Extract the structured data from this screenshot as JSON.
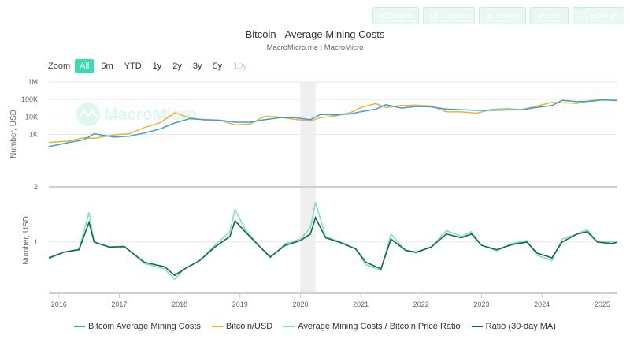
{
  "toolbar": {
    "share_label": "Share",
    "custom_label": "Custom",
    "image_label": "Image",
    "diy_label": "DIY",
    "enlarge_label": "Enlarge"
  },
  "zoom": {
    "label": "Zoom",
    "options": [
      "All",
      "6m",
      "YTD",
      "1y",
      "2y",
      "3y",
      "5y",
      "10y"
    ],
    "selected": "All"
  },
  "watermark": "MacroMicro",
  "colors": {
    "cost": "#3aa0d8",
    "price": "#f0b030",
    "ratio": "#7fdcc0",
    "ratio_ma": "#0f6b4f",
    "zoom_active": "#3ed9b0"
  },
  "chart_data": {
    "type": "line",
    "title": "Bitcoin - Average Mining Costs",
    "subtitle": "MacroMicro.me | MacroMicro",
    "x_ticks": [
      "2016",
      "2017",
      "2018",
      "2019",
      "2020",
      "2021",
      "2022",
      "2023",
      "2024",
      "2025"
    ],
    "x_range": [
      "2015-11",
      "2025-04"
    ],
    "highlight_band": [
      "2020-01",
      "2020-04"
    ],
    "legend_position": "bottom",
    "upper_panel": {
      "ylabel": "Number, USD",
      "scale": "log",
      "y_ticks": [
        "1M",
        "100K",
        "10K",
        "1K",
        "2"
      ],
      "series": [
        {
          "name": "Bitcoin Average Mining Costs",
          "x": [
            "2015-11",
            "2016-03",
            "2016-06",
            "2016-08",
            "2016-12",
            "2017-03",
            "2017-06",
            "2017-09",
            "2017-12",
            "2018-03",
            "2018-06",
            "2018-09",
            "2018-12",
            "2019-03",
            "2019-06",
            "2019-09",
            "2019-12",
            "2020-03",
            "2020-05",
            "2020-08",
            "2020-11",
            "2021-01",
            "2021-04",
            "2021-06",
            "2021-09",
            "2021-12",
            "2022-03",
            "2022-06",
            "2022-09",
            "2022-12",
            "2023-03",
            "2023-06",
            "2023-09",
            "2023-12",
            "2024-03",
            "2024-05",
            "2024-08",
            "2024-11",
            "2025-01",
            "2025-04"
          ],
          "values": [
            200,
            350,
            500,
            1100,
            700,
            800,
            1200,
            2000,
            4500,
            8000,
            7000,
            6500,
            5000,
            5000,
            7000,
            9000,
            9000,
            7000,
            14000,
            13000,
            15000,
            20000,
            28000,
            50000,
            32000,
            40000,
            38000,
            28000,
            26000,
            24000,
            24000,
            25000,
            26000,
            35000,
            45000,
            90000,
            75000,
            80000,
            95000,
            90000
          ]
        },
        {
          "name": "Bitcoin/USD",
          "x": [
            "2015-11",
            "2016-03",
            "2016-06",
            "2016-08",
            "2016-12",
            "2017-03",
            "2017-06",
            "2017-09",
            "2017-12",
            "2018-03",
            "2018-06",
            "2018-09",
            "2018-12",
            "2019-03",
            "2019-06",
            "2019-09",
            "2019-12",
            "2020-03",
            "2020-05",
            "2020-08",
            "2020-11",
            "2021-01",
            "2021-04",
            "2021-06",
            "2021-09",
            "2021-12",
            "2022-03",
            "2022-06",
            "2022-09",
            "2022-12",
            "2023-03",
            "2023-06",
            "2023-09",
            "2023-12",
            "2024-03",
            "2024-05",
            "2024-08",
            "2024-11",
            "2025-01",
            "2025-04"
          ],
          "values": [
            350,
            420,
            650,
            600,
            950,
            1100,
            2500,
            4500,
            17000,
            9000,
            6500,
            6500,
            3500,
            4000,
            11000,
            9500,
            7200,
            6000,
            9000,
            11500,
            18000,
            35000,
            58000,
            35000,
            45000,
            47000,
            42000,
            20000,
            19500,
            16500,
            27000,
            30000,
            26000,
            42000,
            68000,
            65000,
            60000,
            90000,
            100000,
            85000
          ]
        }
      ]
    },
    "lower_panel": {
      "ylabel": "Number, USD",
      "scale": "log",
      "y_ticks": [
        "1"
      ],
      "series": [
        {
          "name": "Average Mining Costs / Bitcoin Price Ratio",
          "x": [
            "2015-11",
            "2016-02",
            "2016-05",
            "2016-07",
            "2016-08",
            "2016-11",
            "2017-02",
            "2017-06",
            "2017-10",
            "2017-12",
            "2018-02",
            "2018-05",
            "2018-08",
            "2018-11",
            "2018-12",
            "2019-02",
            "2019-05",
            "2019-07",
            "2019-10",
            "2020-01",
            "2020-03",
            "2020-04",
            "2020-06",
            "2020-09",
            "2020-12",
            "2021-02",
            "2021-05",
            "2021-07",
            "2021-10",
            "2021-12",
            "2022-03",
            "2022-06",
            "2022-09",
            "2022-11",
            "2023-01",
            "2023-04",
            "2023-07",
            "2023-10",
            "2023-12",
            "2024-03",
            "2024-05",
            "2024-08",
            "2024-10",
            "2024-12",
            "2025-03",
            "2025-04"
          ],
          "values": [
            0.58,
            0.72,
            0.8,
            2.6,
            1.0,
            0.85,
            0.88,
            0.5,
            0.42,
            0.3,
            0.42,
            0.55,
            0.9,
            1.4,
            2.9,
            1.5,
            0.85,
            0.6,
            0.95,
            1.1,
            1.6,
            3.6,
            1.2,
            1.0,
            0.8,
            0.48,
            0.4,
            1.3,
            0.75,
            0.7,
            0.85,
            1.45,
            1.2,
            1.4,
            0.9,
            0.75,
            0.95,
            1.05,
            0.65,
            0.55,
            1.1,
            1.3,
            1.5,
            1.0,
            1.0,
            1.0
          ]
        },
        {
          "name": "Ratio (30-day MA)",
          "x": [
            "2015-11",
            "2016-02",
            "2016-05",
            "2016-07",
            "2016-08",
            "2016-11",
            "2017-02",
            "2017-06",
            "2017-10",
            "2017-12",
            "2018-02",
            "2018-05",
            "2018-08",
            "2018-11",
            "2018-12",
            "2019-02",
            "2019-05",
            "2019-07",
            "2019-10",
            "2020-01",
            "2020-03",
            "2020-04",
            "2020-06",
            "2020-09",
            "2020-12",
            "2021-02",
            "2021-05",
            "2021-07",
            "2021-10",
            "2021-12",
            "2022-03",
            "2022-06",
            "2022-09",
            "2022-11",
            "2023-01",
            "2023-04",
            "2023-07",
            "2023-10",
            "2023-12",
            "2024-03",
            "2024-05",
            "2024-08",
            "2024-10",
            "2024-12",
            "2025-03",
            "2025-04"
          ],
          "values": [
            0.6,
            0.72,
            0.78,
            1.9,
            1.0,
            0.85,
            0.86,
            0.52,
            0.45,
            0.34,
            0.42,
            0.55,
            0.85,
            1.2,
            2.0,
            1.4,
            0.85,
            0.62,
            0.9,
            1.05,
            1.3,
            2.2,
            1.15,
            0.98,
            0.8,
            0.52,
            0.42,
            1.1,
            0.76,
            0.72,
            0.85,
            1.3,
            1.15,
            1.3,
            0.9,
            0.78,
            0.92,
            1.0,
            0.7,
            0.6,
            1.0,
            1.3,
            1.4,
            1.0,
            0.95,
            1.0
          ]
        }
      ]
    }
  }
}
